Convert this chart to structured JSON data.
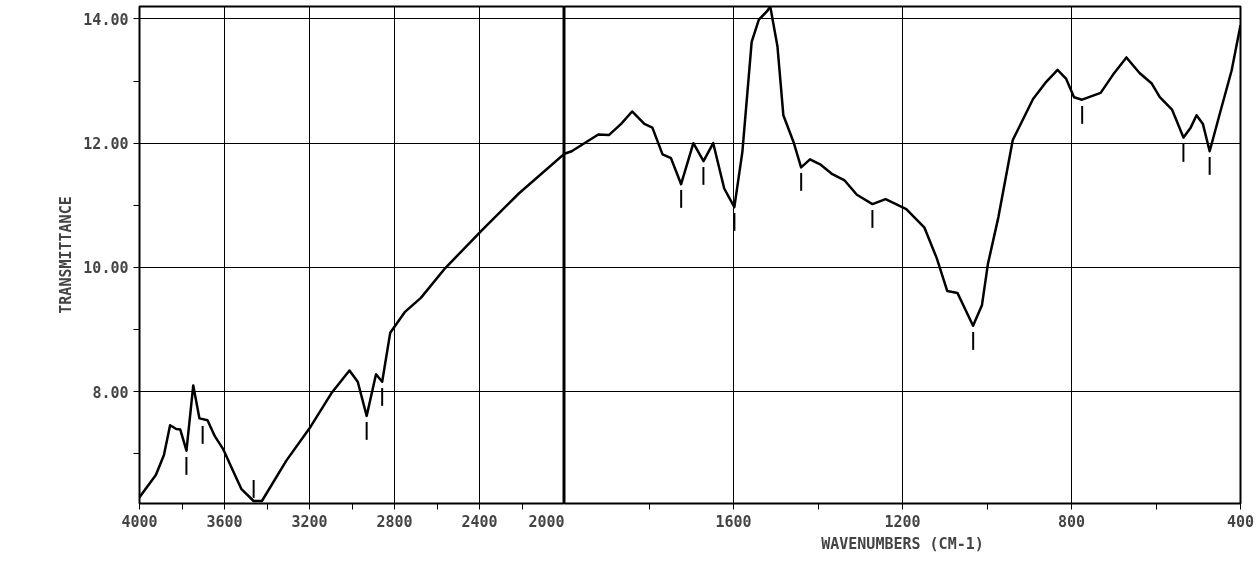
{
  "chart_data": [
    {
      "type": "line",
      "ylabel": "TRANSMITTANCE",
      "xlim": [
        4000,
        2000
      ],
      "ylim": [
        6.2,
        14.2
      ],
      "xticks": [
        4000,
        {
          "value": 3800,
          "label": null
        },
        3600,
        {
          "value": 3400,
          "label": null
        },
        3200,
        {
          "value": 3000,
          "label": null
        },
        2800,
        {
          "value": 2600,
          "label": null
        },
        2400,
        {
          "value": 2200,
          "label": null
        },
        2000
      ],
      "yticks": [
        {
          "value": 7,
          "label": null
        },
        {
          "value": 8,
          "label": "8.00"
        },
        {
          "value": 9,
          "label": null
        },
        {
          "value": 10,
          "label": "10.00"
        },
        {
          "value": 11,
          "label": null
        },
        {
          "value": 12,
          "label": "12.00"
        },
        {
          "value": 13,
          "label": null
        },
        {
          "value": 14,
          "label": "14.00"
        }
      ],
      "grid": true,
      "marker": "none",
      "line_style": "solid",
      "series": [
        {
          "color": "#000000",
          "x": [
            4000,
            3923,
            3885,
            3856,
            3827,
            3808,
            3779,
            3747,
            3718,
            3680,
            3645,
            3607,
            3559,
            3520,
            3463,
            3424,
            3309,
            3194,
            3098,
            3012,
            2973,
            2931,
            2887,
            2858,
            2820,
            2752,
            2676,
            2561,
            2388,
            2215,
            2004,
            2000
          ],
          "values": [
            6.3,
            6.66,
            6.98,
            7.46,
            7.4,
            7.39,
            7.05,
            8.1,
            7.57,
            7.54,
            7.28,
            7.08,
            6.72,
            6.43,
            6.24,
            6.24,
            6.89,
            7.44,
            7.97,
            8.34,
            8.16,
            7.61,
            8.28,
            8.16,
            8.95,
            9.28,
            9.51,
            9.99,
            10.6,
            11.19,
            11.82,
            11.83
          ]
        }
      ],
      "annotations": [
        {
          "text": "|",
          "x": 3779,
          "y": 7.05
        },
        {
          "text": "|",
          "x": 3703,
          "y": 7.55
        },
        {
          "text": "|",
          "x": 3463,
          "y": 6.24
        },
        {
          "text": "|",
          "x": 2931,
          "y": 7.61
        },
        {
          "text": "|",
          "x": 2858,
          "y": 8.16
        }
      ]
    },
    {
      "type": "line",
      "xlabel": "WAVENUMBERS (CM-1)",
      "xlim": [
        2000,
        400
      ],
      "ylim": [
        6.2,
        14.2
      ],
      "tick_labels": "x",
      "xticks": [
        {
          "value": 1800,
          "label": null
        },
        1600,
        {
          "value": 1400,
          "label": null
        },
        1200,
        {
          "value": 1000,
          "label": null
        },
        800,
        {
          "value": 600,
          "label": null
        },
        400
      ],
      "yticks": [
        8,
        10,
        12,
        14
      ],
      "grid": true,
      "marker": "none",
      "line_style": "solid",
      "series": [
        {
          "color": "#000000",
          "x": [
            2000,
            1983,
            1920,
            1895,
            1866,
            1840,
            1811,
            1792,
            1768,
            1748,
            1724,
            1695,
            1671,
            1648,
            1622,
            1598,
            1579,
            1557,
            1540,
            1521,
            1513,
            1496,
            1482,
            1458,
            1440,
            1419,
            1395,
            1366,
            1337,
            1308,
            1271,
            1240,
            1191,
            1148,
            1119,
            1094,
            1070,
            1051,
            1033,
            1012,
            998,
            973,
            939,
            891,
            862,
            833,
            813,
            794,
            775,
            731,
            702,
            670,
            639,
            610,
            591,
            562,
            535,
            518,
            504,
            489,
            473,
            450,
            421,
            400
          ],
          "values": [
            11.83,
            11.87,
            12.14,
            12.13,
            12.31,
            12.51,
            12.31,
            12.25,
            11.82,
            11.76,
            11.34,
            12.0,
            11.71,
            12.0,
            11.27,
            10.97,
            11.86,
            13.63,
            13.99,
            14.12,
            14.2,
            13.56,
            12.45,
            12.02,
            11.61,
            11.74,
            11.66,
            11.5,
            11.4,
            11.17,
            11.02,
            11.1,
            10.94,
            10.64,
            10.15,
            9.62,
            9.59,
            9.32,
            9.06,
            9.39,
            10.05,
            10.81,
            12.05,
            12.71,
            12.97,
            13.18,
            13.04,
            12.74,
            12.7,
            12.81,
            13.1,
            13.38,
            13.13,
            12.96,
            12.74,
            12.54,
            12.09,
            12.25,
            12.45,
            12.31,
            11.87,
            12.45,
            13.17,
            13.9
          ]
        }
      ],
      "annotations": [
        {
          "text": "|",
          "x": 1724,
          "y": 11.34
        },
        {
          "text": "|",
          "x": 1671,
          "y": 11.71
        },
        {
          "text": "|",
          "x": 1598,
          "y": 10.97
        },
        {
          "text": "|",
          "x": 1440,
          "y": 11.61
        },
        {
          "text": "|",
          "x": 1271,
          "y": 11.02
        },
        {
          "text": "|",
          "x": 1033,
          "y": 9.06
        },
        {
          "text": "|",
          "x": 775,
          "y": 12.7
        },
        {
          "text": "|",
          "x": 535,
          "y": 12.09
        },
        {
          "text": "|",
          "x": 473,
          "y": 11.87
        }
      ]
    }
  ]
}
